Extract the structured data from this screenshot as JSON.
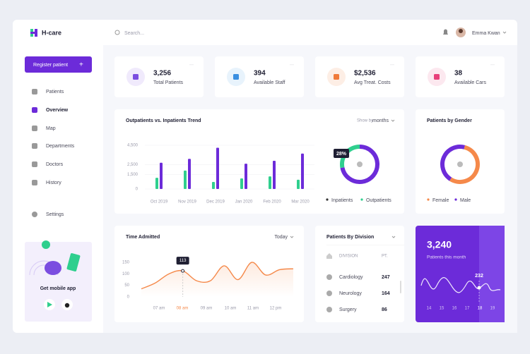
{
  "brand": "H-care",
  "search": "Search...",
  "user": "Emma Kwan",
  "sidebar": {
    "button": "Register patient",
    "nav": [
      "Patients",
      "Overview",
      "Map",
      "Departments",
      "Doctors",
      "History"
    ],
    "settings": "Settings",
    "promo": "Get mobile app"
  },
  "stats": [
    {
      "value": "3,256",
      "label": "Total Patients",
      "color": "#7b4de0",
      "bg": "#f0eafc"
    },
    {
      "value": "394",
      "label": "Available Staff",
      "color": "#3b8fe0",
      "bg": "#e8f3fc"
    },
    {
      "value": "$2,536",
      "label": "Avg Treat. Costs",
      "color": "#f07a3a",
      "bg": "#fdeee5"
    },
    {
      "value": "38",
      "label": "Available Cars",
      "color": "#e8407a",
      "bg": "#fce8ef"
    }
  ],
  "trend": {
    "type": "bar",
    "title": "Outpatients vs. Inpatients Trend",
    "show_by": "Show by",
    "period": "months",
    "categories": [
      "Oct 2019",
      "Nov 2019",
      "Dec 2019",
      "Jan 2020",
      "Feb 2020",
      "Mar 2020"
    ],
    "series": [
      {
        "name": "Outpatients",
        "color": "#2fcf8e",
        "values": [
          1150,
          1900,
          730,
          1090,
          1300,
          950
        ]
      },
      {
        "name": "Inpatients",
        "color": "#6c2bd9",
        "values": [
          2700,
          3100,
          4250,
          2600,
          2900,
          3650
        ]
      }
    ],
    "ylim": [
      0,
      4500
    ],
    "yticks": [
      0,
      {
        "value": 1500,
        "label": "1,500"
      },
      {
        "value": 2500,
        "label": "2,500"
      },
      {
        "value": 4500,
        "label": "4,500"
      }
    ]
  },
  "share": {
    "type": "pie",
    "values": [
      72,
      28
    ],
    "colors": [
      "#6c2bd9",
      "#2fcf8e"
    ],
    "value_labels": [
      null,
      "28%"
    ]
  },
  "gender": {
    "type": "pie",
    "title": "Patients by Gender",
    "series": [
      {
        "name": "Female",
        "color": "#f5894a",
        "value": 55
      },
      {
        "name": "Male",
        "color": "#6c2bd9",
        "value": 45
      }
    ]
  },
  "admitted": {
    "type": "line",
    "title": "Time Admitted",
    "period": "Today",
    "x_labels": [
      "07 am",
      "08 am",
      "09 am",
      "10 am",
      "11 am",
      "12 pm"
    ],
    "values": [
      35,
      60,
      100,
      113,
      70,
      70,
      135,
      75,
      150,
      95,
      118,
      122
    ],
    "color": "#f5894a",
    "ylim": [
      0,
      150
    ],
    "yticks": [
      0,
      50,
      100,
      150
    ]
  },
  "division": {
    "title": "Patients By Division",
    "headers": [
      "DIVISION",
      "PT."
    ],
    "rows": [
      [
        "Cardiology",
        "247"
      ],
      [
        "Neurology",
        "164"
      ],
      [
        "Surgery",
        "86"
      ]
    ]
  },
  "month_card": {
    "value": "3,240",
    "label": "Patients this month",
    "days": [
      14,
      15,
      16,
      17,
      18,
      19
    ],
    "highlight": "232"
  }
}
